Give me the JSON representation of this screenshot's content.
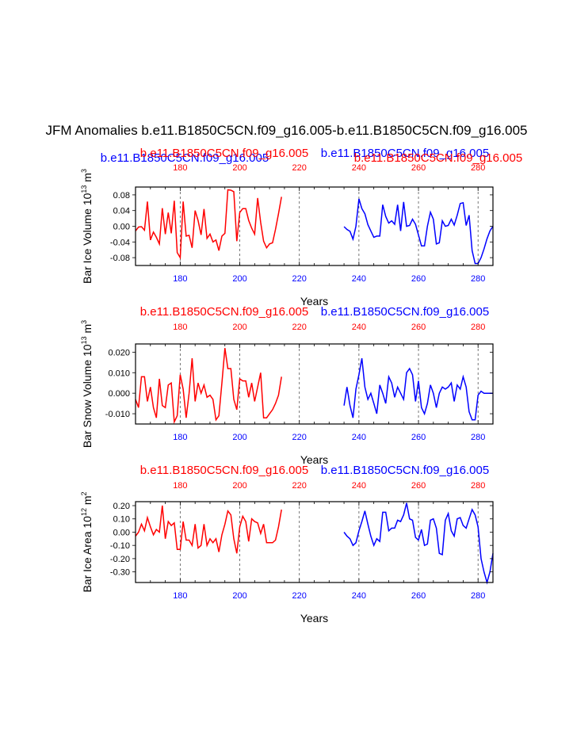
{
  "title": "JFM Anomalies b.e11.B1850C5CN.f09_g16.005-b.e11.B1850C5CN.f09_g16.005",
  "colors": {
    "run1": "#ff0000",
    "run2": "#0000ff",
    "axis": "#000000"
  },
  "chart_data": [
    {
      "type": "line",
      "ylabel": "Bar Ice Volume 10",
      "ylabel_exp": "13",
      "ylabel_unit": " m",
      "ylabel_unit_exp": "3",
      "xlabel": "Years",
      "top_labels": {
        "run2": "b.e11.B1850C5CN.f09_g16.005",
        "run1": "b.e11.B1850C5CN.f09_g16.005"
      },
      "top_labels_alt": {
        "run1": "b.e11.B1850C5CN.f09_g16.005",
        "run2": "b.e11.B1850C5CN.f09_g16.005"
      },
      "xlim": [
        165,
        285
      ],
      "ylim": [
        -0.1,
        0.1
      ],
      "yticks": [
        "0.08",
        "0.04",
        "0.00",
        "-0.04",
        "-0.08"
      ],
      "ytick_values": [
        0.08,
        0.04,
        0.0,
        -0.04,
        -0.08
      ],
      "xticks": [
        "180",
        "200",
        "220",
        "240",
        "260",
        "280"
      ],
      "xtick_values": [
        180,
        200,
        220,
        240,
        260,
        280
      ],
      "series": [
        {
          "color": "#ff0000",
          "x": [
            165,
            166,
            167,
            168,
            169,
            170,
            171,
            172,
            173,
            174,
            175,
            176,
            177,
            178,
            179,
            180,
            181,
            182,
            183,
            184,
            185,
            186,
            187,
            188,
            189,
            190,
            191,
            192,
            193,
            194,
            195,
            196,
            197,
            198,
            199,
            200,
            201,
            202,
            203,
            204,
            205,
            206,
            207,
            208,
            209,
            210,
            211,
            212,
            213,
            214
          ],
          "y": [
            -0.012,
            -0.002,
            -0.001,
            -0.01,
            0.063,
            -0.035,
            -0.015,
            -0.028,
            -0.045,
            0.046,
            -0.02,
            0.035,
            -0.018,
            0.065,
            -0.067,
            -0.08,
            0.063,
            -0.025,
            -0.023,
            -0.055,
            0.04,
            0.015,
            -0.022,
            0.044,
            -0.031,
            -0.02,
            -0.04,
            -0.035,
            -0.062,
            -0.025,
            -0.018,
            0.093,
            0.092,
            0.088,
            -0.038,
            0.035,
            0.045,
            0.045,
            0.015,
            -0.005,
            -0.02,
            0.072,
            0.01,
            -0.038,
            -0.055,
            -0.045,
            -0.042,
            -0.008,
            0.032,
            0.075
          ]
        },
        {
          "color": "#0000ff",
          "x": [
            235,
            236,
            237,
            238,
            239,
            240,
            241,
            242,
            243,
            244,
            245,
            246,
            247,
            248,
            249,
            250,
            251,
            252,
            253,
            254,
            255,
            256,
            257,
            258,
            259,
            260,
            261,
            262,
            263,
            264,
            265,
            266,
            267,
            268,
            269,
            270,
            271,
            272,
            273,
            274,
            275,
            276,
            277,
            278,
            279,
            280,
            281,
            282,
            283,
            284,
            285
          ],
          "y": [
            -0.001,
            -0.008,
            -0.013,
            -0.033,
            0.0,
            0.07,
            0.045,
            0.032,
            0.004,
            -0.012,
            -0.028,
            -0.025,
            -0.025,
            0.055,
            0.025,
            0.008,
            0.014,
            0.005,
            0.055,
            -0.012,
            0.062,
            0.0,
            0.002,
            0.018,
            0.005,
            -0.022,
            -0.05,
            -0.05,
            0.0,
            0.036,
            0.018,
            -0.045,
            -0.042,
            0.014,
            0.0,
            0.002,
            0.018,
            0.003,
            0.028,
            0.058,
            0.06,
            0.002,
            0.028,
            -0.062,
            -0.095,
            -0.095,
            -0.08,
            -0.058,
            -0.032,
            -0.012,
            0.0
          ]
        }
      ]
    },
    {
      "type": "line",
      "ylabel": "Bar Snow Volume 10",
      "ylabel_exp": "13",
      "ylabel_unit": " m",
      "ylabel_unit_exp": "3",
      "xlabel": "Years",
      "top_labels": {
        "run1": "b.e11.B1850C5CN.f09_g16.005",
        "run2": "b.e11.B1850C5CN.f09_g16.005"
      },
      "xlim": [
        165,
        285
      ],
      "ylim": [
        -0.015,
        0.024
      ],
      "yticks": [
        "0.020",
        "0.010",
        "0.000",
        "-0.010"
      ],
      "ytick_values": [
        0.02,
        0.01,
        0.0,
        -0.01
      ],
      "xticks": [
        "180",
        "200",
        "220",
        "240",
        "260",
        "280"
      ],
      "xtick_values": [
        180,
        200,
        220,
        240,
        260,
        280
      ],
      "series": [
        {
          "color": "#ff0000",
          "x": [
            165,
            166,
            167,
            168,
            169,
            170,
            171,
            172,
            173,
            174,
            175,
            176,
            177,
            178,
            179,
            180,
            181,
            182,
            183,
            184,
            185,
            186,
            187,
            188,
            189,
            190,
            191,
            192,
            193,
            194,
            195,
            196,
            197,
            198,
            199,
            200,
            201,
            202,
            203,
            204,
            205,
            206,
            207,
            208,
            209,
            210,
            211,
            212,
            213,
            214
          ],
          "y": [
            -0.003,
            -0.007,
            0.008,
            0.008,
            -0.004,
            0.003,
            -0.007,
            -0.012,
            0.007,
            -0.006,
            -0.007,
            0.004,
            0.005,
            -0.014,
            -0.011,
            0.009,
            0.002,
            -0.012,
            0.0,
            0.017,
            -0.004,
            0.005,
            0.0,
            0.004,
            -0.002,
            -0.001,
            -0.003,
            -0.013,
            -0.011,
            0.005,
            0.022,
            0.012,
            0.012,
            -0.003,
            -0.008,
            0.007,
            0.006,
            0.006,
            -0.002,
            0.005,
            -0.004,
            0.003,
            0.01,
            -0.012,
            -0.012,
            -0.01,
            -0.008,
            -0.005,
            -0.001,
            0.008
          ]
        },
        {
          "color": "#0000ff",
          "x": [
            235,
            236,
            237,
            238,
            239,
            240,
            241,
            242,
            243,
            244,
            245,
            246,
            247,
            248,
            249,
            250,
            251,
            252,
            253,
            254,
            255,
            256,
            257,
            258,
            259,
            260,
            261,
            262,
            263,
            264,
            265,
            266,
            267,
            268,
            269,
            270,
            271,
            272,
            273,
            274,
            275,
            276,
            277,
            278,
            279,
            280,
            281,
            282,
            283,
            284,
            285
          ],
          "y": [
            -0.006,
            0.003,
            -0.006,
            -0.012,
            0.002,
            0.009,
            0.017,
            0.003,
            -0.003,
            0.0,
            -0.005,
            -0.01,
            0.004,
            0.0,
            -0.005,
            0.008,
            0.005,
            -0.002,
            0.003,
            0.0,
            -0.003,
            0.01,
            0.012,
            0.009,
            -0.004,
            0.006,
            -0.007,
            -0.01,
            -0.005,
            0.004,
            0.0,
            -0.007,
            0.0,
            0.003,
            0.002,
            0.003,
            0.005,
            -0.004,
            0.004,
            0.002,
            0.008,
            0.003,
            -0.009,
            -0.013,
            -0.013,
            -0.001,
            0.001,
            0.0,
            0.0,
            0.0,
            0.0
          ]
        }
      ]
    },
    {
      "type": "line",
      "ylabel": "Bar Ice Area 10",
      "ylabel_exp": "12",
      "ylabel_unit": " m",
      "ylabel_unit_exp": "2",
      "xlabel": "Years",
      "top_labels": {
        "run1": "b.e11.B1850C5CN.f09_g16.005",
        "run2": "b.e11.B1850C5CN.f09_g16.005"
      },
      "xlim": [
        165,
        285
      ],
      "ylim": [
        -0.38,
        0.23
      ],
      "yticks": [
        "0.20",
        "0.10",
        "0.00",
        "-0.10",
        "-0.20",
        "-0.30"
      ],
      "ytick_values": [
        0.2,
        0.1,
        0.0,
        -0.1,
        -0.2,
        -0.3
      ],
      "xticks": [
        "180",
        "200",
        "220",
        "240",
        "260",
        "280"
      ],
      "xtick_values": [
        180,
        200,
        220,
        240,
        260,
        280
      ],
      "series": [
        {
          "color": "#ff0000",
          "x": [
            165,
            166,
            167,
            168,
            169,
            170,
            171,
            172,
            173,
            174,
            175,
            176,
            177,
            178,
            179,
            180,
            181,
            182,
            183,
            184,
            185,
            186,
            187,
            188,
            189,
            190,
            191,
            192,
            193,
            194,
            195,
            196,
            197,
            198,
            199,
            200,
            201,
            202,
            203,
            204,
            205,
            206,
            207,
            208,
            209,
            210,
            211,
            212,
            213,
            214
          ],
          "y": [
            -0.03,
            0.0,
            0.06,
            0.01,
            0.11,
            0.04,
            -0.02,
            0.02,
            0.0,
            0.2,
            -0.05,
            0.08,
            0.05,
            0.07,
            -0.13,
            -0.13,
            0.08,
            -0.06,
            -0.06,
            -0.1,
            0.06,
            -0.12,
            -0.1,
            0.06,
            -0.1,
            -0.05,
            -0.08,
            -0.05,
            -0.15,
            -0.02,
            0.06,
            0.16,
            0.13,
            -0.05,
            -0.16,
            0.04,
            0.12,
            0.08,
            -0.07,
            0.1,
            0.08,
            0.07,
            -0.01,
            0.06,
            -0.08,
            -0.08,
            -0.08,
            -0.06,
            0.04,
            0.17
          ]
        },
        {
          "color": "#0000ff",
          "x": [
            235,
            236,
            237,
            238,
            239,
            240,
            241,
            242,
            243,
            244,
            245,
            246,
            247,
            248,
            249,
            250,
            251,
            252,
            253,
            254,
            255,
            256,
            257,
            258,
            259,
            260,
            261,
            262,
            263,
            264,
            265,
            266,
            267,
            268,
            269,
            270,
            271,
            272,
            273,
            274,
            275,
            276,
            277,
            278,
            279,
            280,
            281,
            282,
            283,
            284,
            285
          ],
          "y": [
            0.0,
            -0.03,
            -0.05,
            -0.1,
            -0.08,
            0.01,
            0.08,
            0.16,
            0.06,
            -0.03,
            -0.1,
            -0.05,
            -0.07,
            0.15,
            0.15,
            0.01,
            0.03,
            0.03,
            0.09,
            0.08,
            0.13,
            0.22,
            0.1,
            0.09,
            -0.04,
            -0.06,
            0.02,
            -0.1,
            -0.09,
            0.09,
            0.1,
            0.03,
            -0.16,
            -0.17,
            0.09,
            0.14,
            0.01,
            -0.03,
            0.1,
            0.11,
            0.05,
            0.03,
            0.1,
            0.17,
            0.13,
            0.04,
            -0.2,
            -0.3,
            -0.38,
            -0.3,
            -0.16
          ]
        }
      ]
    }
  ]
}
